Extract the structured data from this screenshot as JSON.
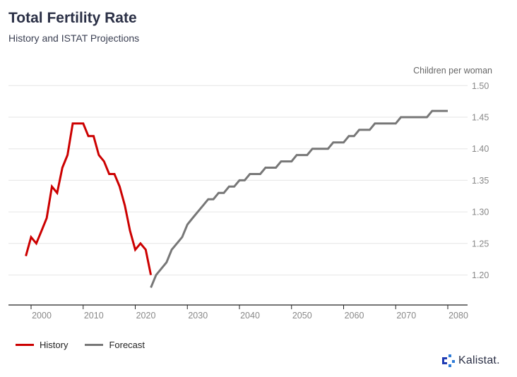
{
  "header": {
    "title": "Total Fertility Rate",
    "subtitle": "History and ISTAT Projections"
  },
  "brand": {
    "name": "Kalistat."
  },
  "colors": {
    "history": "#cc0000",
    "forecast": "#777777",
    "grid": "#e6e6e6",
    "axis": "#222222",
    "tick_text": "#888888"
  },
  "chart_data": {
    "type": "line",
    "title": "Total Fertility Rate",
    "subtitle": "History and ISTAT Projections",
    "ylabel": "Children per woman",
    "xlabel": "",
    "xlim": [
      1995,
      2082
    ],
    "ylim": [
      1.16,
      1.5
    ],
    "y_ticks": [
      1.2,
      1.25,
      1.3,
      1.35,
      1.4,
      1.45,
      1.5
    ],
    "y_tick_labels": [
      "1.20",
      "1.25",
      "1.30",
      "1.35",
      "1.40",
      "1.45",
      "1.50"
    ],
    "x_ticks": [
      2000,
      2010,
      2020,
      2030,
      2040,
      2050,
      2060,
      2070,
      2080
    ],
    "x_tick_labels": [
      "2000",
      "2010",
      "2020",
      "2030",
      "2040",
      "2050",
      "2060",
      "2070",
      "2080"
    ],
    "grid": "horizontal",
    "legend": "bottom-left",
    "series": [
      {
        "name": "History",
        "color": "#cc0000",
        "x": [
          1999,
          2000,
          2001,
          2002,
          2003,
          2004,
          2005,
          2006,
          2007,
          2008,
          2009,
          2010,
          2011,
          2012,
          2013,
          2014,
          2015,
          2016,
          2017,
          2018,
          2019,
          2020,
          2021,
          2022,
          2023
        ],
        "y": [
          1.23,
          1.26,
          1.25,
          1.27,
          1.29,
          1.34,
          1.33,
          1.37,
          1.39,
          1.44,
          1.44,
          1.44,
          1.42,
          1.42,
          1.39,
          1.38,
          1.36,
          1.36,
          1.34,
          1.31,
          1.27,
          1.24,
          1.25,
          1.24,
          1.2
        ]
      },
      {
        "name": "Forecast",
        "color": "#777777",
        "x": [
          2023,
          2024,
          2025,
          2026,
          2027,
          2028,
          2029,
          2030,
          2031,
          2032,
          2033,
          2034,
          2035,
          2036,
          2037,
          2038,
          2039,
          2040,
          2041,
          2042,
          2043,
          2044,
          2045,
          2046,
          2047,
          2048,
          2049,
          2050,
          2051,
          2052,
          2053,
          2054,
          2055,
          2056,
          2057,
          2058,
          2059,
          2060,
          2061,
          2062,
          2063,
          2064,
          2065,
          2066,
          2067,
          2068,
          2069,
          2070,
          2071,
          2072,
          2073,
          2074,
          2075,
          2076,
          2077,
          2078,
          2079,
          2080
        ],
        "y": [
          1.18,
          1.2,
          1.21,
          1.22,
          1.24,
          1.25,
          1.26,
          1.28,
          1.29,
          1.3,
          1.31,
          1.32,
          1.32,
          1.33,
          1.33,
          1.34,
          1.34,
          1.35,
          1.35,
          1.36,
          1.36,
          1.36,
          1.37,
          1.37,
          1.37,
          1.38,
          1.38,
          1.38,
          1.39,
          1.39,
          1.39,
          1.4,
          1.4,
          1.4,
          1.4,
          1.41,
          1.41,
          1.41,
          1.42,
          1.42,
          1.43,
          1.43,
          1.43,
          1.44,
          1.44,
          1.44,
          1.44,
          1.44,
          1.45,
          1.45,
          1.45,
          1.45,
          1.45,
          1.45,
          1.46,
          1.46,
          1.46,
          1.46
        ]
      }
    ]
  }
}
